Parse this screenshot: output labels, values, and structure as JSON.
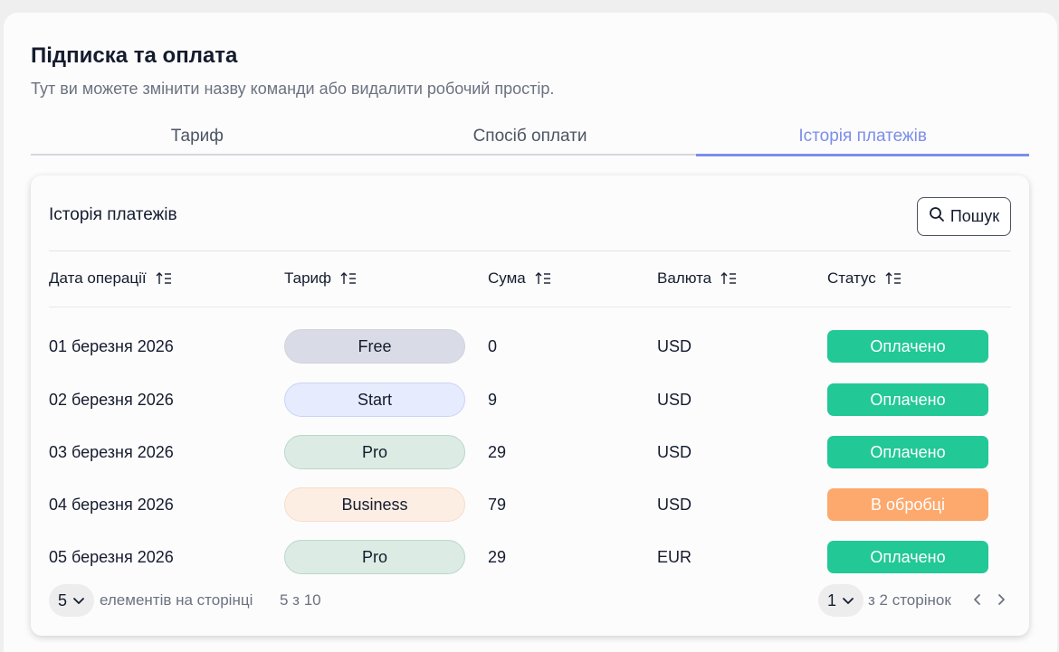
{
  "header": {
    "title": "Підписка та оплата",
    "subtitle": "Тут ви можете змінити назву команди або видалити робочий простір."
  },
  "tabs": [
    {
      "label": "Тариф",
      "active": false
    },
    {
      "label": "Спосіб оплати",
      "active": false
    },
    {
      "label": "Історія платежів",
      "active": true
    }
  ],
  "card": {
    "title": "Історія платежів",
    "search_label": "Пошук"
  },
  "table": {
    "columns": [
      "Дата операції",
      "Тариф",
      "Сума",
      "Валюта",
      "Статус"
    ],
    "rows": [
      {
        "date": "01 березня 2026",
        "plan": "Free",
        "amount": "0",
        "currency": "USD",
        "status": "Оплачено"
      },
      {
        "date": "02 березня 2026",
        "plan": "Start",
        "amount": "9",
        "currency": "USD",
        "status": "Оплачено"
      },
      {
        "date": "03 березня 2026",
        "plan": "Pro",
        "amount": "29",
        "currency": "USD",
        "status": "Оплачено"
      },
      {
        "date": "04 березня 2026",
        "plan": "Business",
        "amount": "79",
        "currency": "USD",
        "status": "В обробці"
      },
      {
        "date": "05 березня 2026",
        "plan": "Pro",
        "amount": "29",
        "currency": "EUR",
        "status": "Оплачено"
      }
    ]
  },
  "footer": {
    "page_size": "5",
    "page_size_label": "елементів на сторінці",
    "range": "5 з 10",
    "current_page": "1",
    "pages_label": "з 2 сторінок"
  },
  "colors": {
    "accent": "#7b8ee8",
    "paid": "#22c896",
    "pending": "#fda96e",
    "plan_free": "#d9dce6",
    "plan_start": "#e6ecfd",
    "plan_pro": "#dcebe4",
    "plan_business": "#fdeee4"
  }
}
